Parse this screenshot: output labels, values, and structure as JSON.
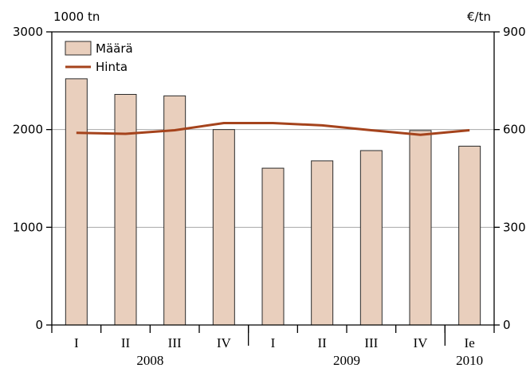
{
  "chart_data": {
    "type": "bar",
    "left_unit": "1000 tn",
    "right_unit": "€/tn",
    "categories": [
      "I",
      "II",
      "III",
      "IV",
      "I",
      "II",
      "III",
      "IV",
      "Ie"
    ],
    "groups": [
      {
        "label": "2008",
        "start": 0,
        "end": 3
      },
      {
        "label": "2009",
        "start": 4,
        "end": 7
      },
      {
        "label": "2010",
        "start": 8,
        "end": 8
      }
    ],
    "series": [
      {
        "name": "Määrä",
        "type": "bar",
        "axis": "left",
        "values": [
          2520,
          2360,
          2345,
          2000,
          1605,
          1680,
          1785,
          1990,
          1830
        ]
      },
      {
        "name": "Hinta",
        "type": "line",
        "axis": "right",
        "values": [
          590,
          587,
          598,
          620,
          620,
          613,
          598,
          584,
          598
        ]
      }
    ],
    "ylim_left": [
      0,
      3000
    ],
    "ylim_right": [
      0,
      900
    ],
    "yticks_left": [
      "0",
      "1000",
      "2000",
      "3000"
    ],
    "yticks_right": [
      "0",
      "300",
      "600",
      "900"
    ],
    "legend_position": "top-left",
    "grid": true,
    "colors": {
      "bar_fill": "#e9cfbd",
      "bar_stroke": "#2b2b2b",
      "line": "#a5431c",
      "grid": "#a8a8a8",
      "axis": "#000000"
    }
  }
}
